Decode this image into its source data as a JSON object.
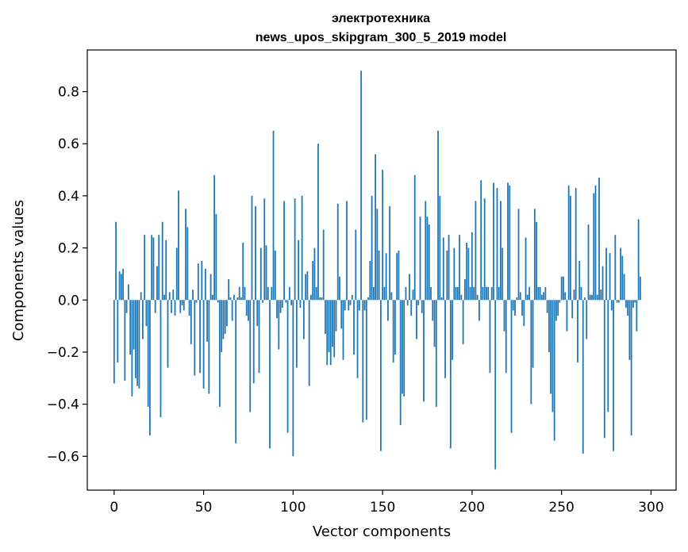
{
  "chart_data": {
    "type": "bar",
    "title_line1": "электротехника",
    "title_line2": "news_upos_skipgram_300_5_2019 model",
    "xlabel": "Vector components",
    "ylabel": "Components values",
    "xlim": [
      -15,
      314
    ],
    "ylim": [
      -0.73,
      0.96
    ],
    "xticks": [
      0,
      50,
      100,
      150,
      200,
      250,
      300
    ],
    "xtick_labels": [
      "0",
      "50",
      "100",
      "150",
      "200",
      "250",
      "300"
    ],
    "yticks": [
      -0.6,
      -0.4,
      -0.2,
      0.0,
      0.2,
      0.4,
      0.6,
      0.8
    ],
    "ytick_labels": [
      "−0.6",
      "−0.4",
      "−0.2",
      "0.0",
      "0.2",
      "0.4",
      "0.6",
      "0.8"
    ],
    "bar_color": "#1f77b4",
    "grid": false,
    "values": [
      -0.32,
      0.3,
      -0.24,
      0.11,
      0.1,
      0.12,
      -0.31,
      -0.05,
      0.06,
      -0.21,
      -0.37,
      -0.19,
      -0.3,
      -0.33,
      -0.34,
      0.03,
      -0.15,
      0.25,
      -0.1,
      -0.41,
      -0.52,
      0.25,
      0.24,
      -0.05,
      0.13,
      0.25,
      -0.45,
      0.3,
      0.02,
      0.23,
      -0.26,
      0.03,
      -0.05,
      0.04,
      -0.06,
      0.2,
      0.42,
      -0.05,
      -0.02,
      -0.04,
      0.35,
      0.28,
      -0.06,
      -0.17,
      0.04,
      -0.29,
      -0.01,
      0.14,
      -0.28,
      0.15,
      -0.34,
      0.12,
      -0.16,
      -0.36,
      0.1,
      0.02,
      0.48,
      0.33,
      -0.01,
      -0.41,
      -0.2,
      -0.15,
      -0.13,
      -0.1,
      0.08,
      0.01,
      -0.08,
      0.02,
      -0.55,
      0.01,
      0.05,
      0.01,
      0.22,
      0.05,
      -0.06,
      -0.08,
      -0.43,
      0.4,
      -0.32,
      0.36,
      -0.1,
      -0.28,
      0.2,
      -0.01,
      0.39,
      0.21,
      0.05,
      -0.57,
      0.05,
      0.65,
      0.19,
      -0.07,
      -0.19,
      -0.05,
      -0.03,
      0.38,
      -0.01,
      -0.51,
      0.05,
      -0.02,
      -0.6,
      0.39,
      -0.26,
      0.23,
      -0.03,
      0.4,
      -0.15,
      0.1,
      0.11,
      -0.33,
      0.02,
      0.15,
      0.2,
      0.05,
      0.6,
      0.01,
      0.01,
      0.27,
      -0.13,
      -0.25,
      -0.2,
      -0.25,
      -0.18,
      -0.22,
      -0.12,
      0.37,
      0.09,
      -0.11,
      -0.23,
      -0.04,
      0.38,
      -0.04,
      -0.02,
      0.02,
      -0.21,
      0.27,
      -0.3,
      -0.04,
      0.88,
      -0.47,
      -0.04,
      -0.46,
      0.01,
      0.15,
      0.4,
      0.05,
      0.56,
      0.35,
      0.19,
      -0.58,
      0.5,
      0.05,
      0.18,
      -0.08,
      0.36,
      0.03,
      -0.24,
      -0.21,
      0.18,
      0.19,
      -0.48,
      -0.36,
      -0.37,
      0.05,
      -0.02,
      0.1,
      -0.06,
      0.04,
      0.48,
      -0.15,
      -0.02,
      0.32,
      -0.05,
      -0.39,
      0.38,
      0.32,
      0.29,
      0.05,
      -0.08,
      -0.18,
      -0.41,
      0.65,
      0.4,
      0.01,
      0.24,
      -0.3,
      0.19,
      0.25,
      -0.57,
      -0.23,
      0.2,
      0.05,
      0.05,
      0.25,
      0.02,
      -0.17,
      0.08,
      0.22,
      0.2,
      0.05,
      0.26,
      0.05,
      0.38,
      0.02,
      -0.08,
      0.46,
      0.05,
      0.39,
      0.05,
      0.05,
      -0.28,
      0.05,
      0.45,
      -0.65,
      0.43,
      0.05,
      0.38,
      0.2,
      -0.12,
      -0.28,
      0.45,
      0.44,
      -0.51,
      -0.04,
      -0.06,
      0.01,
      0.35,
      0.03,
      -0.06,
      -0.1,
      0.24,
      0.02,
      0.05,
      -0.4,
      -0.26,
      0.35,
      0.3,
      0.05,
      0.05,
      0.02,
      0.03,
      0.05,
      -0.05,
      -0.2,
      -0.36,
      -0.43,
      -0.54,
      -0.08,
      -0.06,
      -0.01,
      0.09,
      0.09,
      0.03,
      -0.12,
      0.44,
      0.4,
      -0.07,
      0.04,
      0.43,
      -0.24,
      0.15,
      0.05,
      -0.59,
      0.01,
      -0.15,
      0.29,
      0.02,
      0.02,
      0.41,
      0.44,
      0.02,
      0.47,
      0.04,
      0.13,
      -0.53,
      0.2,
      -0.43,
      0.18,
      -0.04,
      -0.58,
      0.25,
      -0.01,
      -0.01,
      0.2,
      0.17,
      0.1,
      -0.03,
      -0.06,
      -0.23,
      -0.52,
      -0.03,
      -0.01,
      -0.12,
      0.31,
      0.09
    ]
  }
}
